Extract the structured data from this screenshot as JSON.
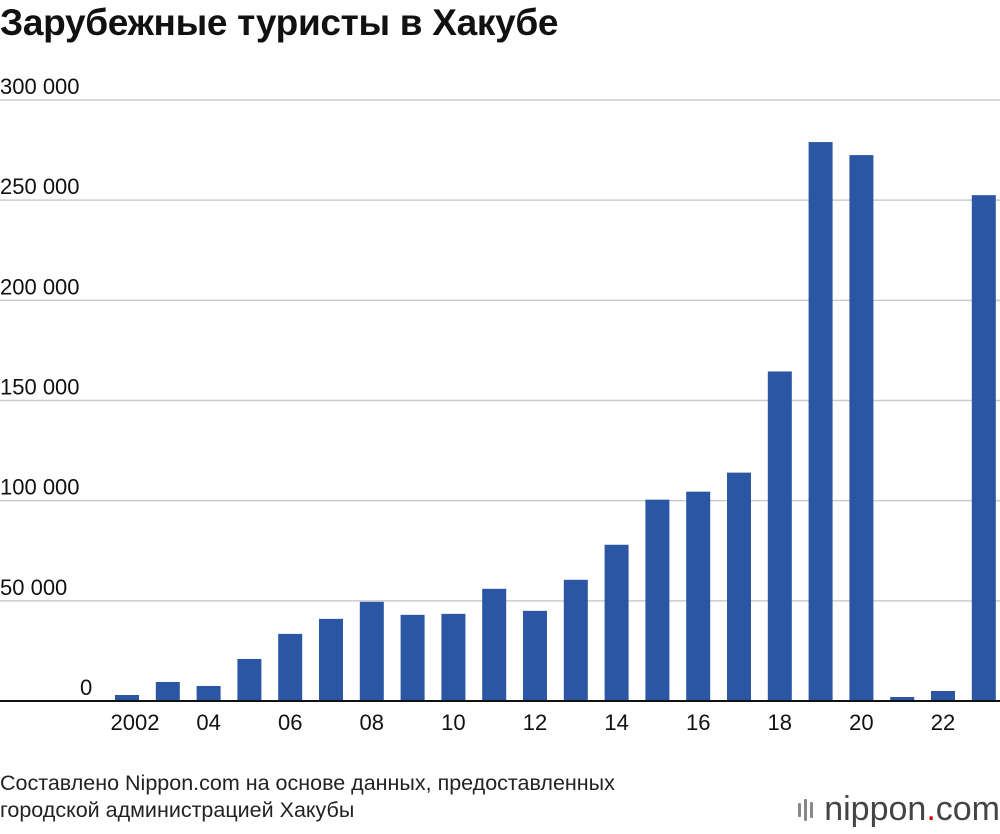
{
  "title": "Зарубежные туристы в Хакубе",
  "source": {
    "line1": "Составлено Nippon.com на основе данных, предоставленных",
    "line2": "городской администрацией Хакубы"
  },
  "logo": {
    "part1": "nippon",
    "dot": ".",
    "part2": "com",
    "dot_color": "#d7000f"
  },
  "colors": {
    "bar": "#2b56a3",
    "grid": "#cccccc",
    "axis": "#111111"
  },
  "chart_data": {
    "type": "bar",
    "title": "Зарубежные туристы в Хакубе",
    "xlabel": "",
    "ylabel": "",
    "ylim": [
      0,
      300000
    ],
    "grid": true,
    "yticks": [
      0,
      50000,
      100000,
      150000,
      200000,
      250000,
      300000
    ],
    "ytick_labels": [
      "0",
      "50 000",
      "100 000",
      "150 000",
      "200 000",
      "250 000",
      "300 000"
    ],
    "categories": [
      "2002",
      "2003",
      "2004",
      "2005",
      "2006",
      "2007",
      "2008",
      "2009",
      "2010",
      "2011",
      "2012",
      "2013",
      "2014",
      "2015",
      "2016",
      "2017",
      "2018",
      "2019",
      "2020",
      "2021",
      "2022",
      "2023"
    ],
    "xtick_labels": [
      "2002",
      "",
      "04",
      "",
      "06",
      "",
      "08",
      "",
      "10",
      "",
      "12",
      "",
      "14",
      "",
      "16",
      "",
      "18",
      "",
      "20",
      "",
      "22",
      ""
    ],
    "values": [
      3000,
      9500,
      7500,
      21000,
      33500,
      41000,
      49500,
      43000,
      43500,
      56000,
      45000,
      60500,
      78000,
      100500,
      104500,
      114000,
      164500,
      279000,
      272500,
      2000,
      5000,
      252500
    ]
  }
}
